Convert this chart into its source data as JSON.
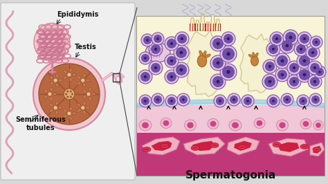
{
  "title": "Spermatogonia",
  "title_fontsize": 11,
  "title_fontweight": "bold",
  "bg_color": "#d8d8d8",
  "label_epididymis": "Epididymis",
  "label_testis": "Testis",
  "label_seminiferous": "Seminiferous\ntubules",
  "label_fontsize": 7,
  "panel_bg": "#efefef",
  "lumen_color": "#f5f0c0",
  "cell_outer_color": "#e8c8e0",
  "cell_inner_color": "#7855a8",
  "nucleolus_color": "#3a1860",
  "base_deep_color": "#c03878",
  "base_mid_color": "#e880a8",
  "vessel_outer": "#f0b0c8",
  "vessel_inner": "#cc2244",
  "interstitial_color": "#f0c8d8",
  "arrow_color": "#111111",
  "sperm_tail_color": "#aaaacc",
  "right_bg": "#e8e8e8",
  "tubule_bg": "#f8f4d8",
  "basement_color": "#88c8e0",
  "connective_color": "#f0d8e8"
}
